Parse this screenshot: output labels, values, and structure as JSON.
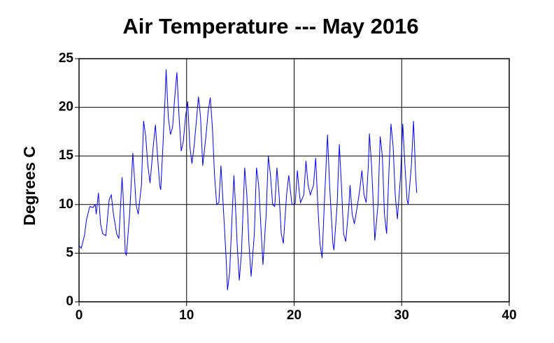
{
  "chart_data": {
    "type": "line",
    "title": "Air Temperature --- May 2016",
    "ylabel": "Degrees C",
    "color": "#0000ff",
    "grid": true,
    "xlim": [
      0,
      40
    ],
    "xticks": [
      0,
      10,
      20,
      30,
      40
    ],
    "ylim": [
      0,
      25
    ],
    "yticks": [
      0,
      5,
      10,
      15,
      20,
      25
    ],
    "x": [
      0,
      0.2,
      0.5,
      0.7,
      1.0,
      1.3,
      1.5,
      1.6,
      1.8,
      2.0,
      2.2,
      2.5,
      2.8,
      3.0,
      3.2,
      3.5,
      3.7,
      4.0,
      4.1,
      4.3,
      4.4,
      4.7,
      5.0,
      5.2,
      5.3,
      5.5,
      5.8,
      6.0,
      6.2,
      6.4,
      6.6,
      6.9,
      7.1,
      7.3,
      7.5,
      7.6,
      7.8,
      8.0,
      8.1,
      8.3,
      8.5,
      8.7,
      8.9,
      9.1,
      9.3,
      9.5,
      9.7,
      9.9,
      10.1,
      10.3,
      10.5,
      10.7,
      10.9,
      11.1,
      11.3,
      11.5,
      11.8,
      12.0,
      12.2,
      12.4,
      12.6,
      12.8,
      13.0,
      13.2,
      13.3,
      13.5,
      13.7,
      13.8,
      14.0,
      14.2,
      14.4,
      14.5,
      14.7,
      14.9,
      15.1,
      15.4,
      15.6,
      15.8,
      16.0,
      16.3,
      16.5,
      16.7,
      16.9,
      17.1,
      17.4,
      17.6,
      17.8,
      18.0,
      18.2,
      18.4,
      18.6,
      18.8,
      19.0,
      19.3,
      19.5,
      19.8,
      20.1,
      20.3,
      20.5,
      20.6,
      20.9,
      21.1,
      21.3,
      21.5,
      21.8,
      22.0,
      22.2,
      22.4,
      22.6,
      22.8,
      23.1,
      23.3,
      23.6,
      23.7,
      24.0,
      24.2,
      24.4,
      24.6,
      24.8,
      25.1,
      25.2,
      25.4,
      25.6,
      25.9,
      26.1,
      26.3,
      26.5,
      26.7,
      26.9,
      27.0,
      27.2,
      27.4,
      27.5,
      27.8,
      28.0,
      28.2,
      28.4,
      28.6,
      28.8,
      29.0,
      29.2,
      29.4,
      29.6,
      29.9,
      30.1,
      30.3,
      30.5,
      30.6,
      30.9,
      31.1,
      31.3,
      31.4
    ],
    "values": [
      5.8,
      5.5,
      6.8,
      8.5,
      9.8,
      9.7,
      10.0,
      9.0,
      11.2,
      8.0,
      7.0,
      6.8,
      10.5,
      11.0,
      9.0,
      7.0,
      6.5,
      12.8,
      11,
      5.0,
      4.8,
      9,
      15.3,
      12,
      10,
      9,
      12,
      18.6,
      17,
      14,
      12.2,
      16,
      18.2,
      15,
      12,
      11.5,
      16,
      21,
      23.9,
      19,
      17.2,
      18,
      21,
      23.6,
      19,
      15.5,
      16.5,
      19,
      20.6,
      16,
      14.2,
      16,
      18.5,
      21.1,
      19,
      14,
      17,
      19.5,
      21,
      18,
      13,
      10,
      10.2,
      14,
      12,
      8,
      4,
      1.2,
      3,
      8,
      13,
      11,
      6,
      2.2,
      5,
      13.8,
      11,
      6,
      2.6,
      7,
      13.8,
      12,
      8,
      3.8,
      9,
      15,
      13,
      10,
      9.8,
      13.8,
      11,
      7,
      6,
      11,
      13,
      10,
      10.1,
      13.5,
      11,
      10.2,
      11,
      14.5,
      12,
      11,
      12,
      14.8,
      10,
      6,
      4.5,
      10,
      17.2,
      12,
      6,
      5.3,
      10,
      16.2,
      12,
      7,
      6.2,
      10,
      12,
      9,
      8,
      10,
      11.5,
      13.5,
      11,
      10.2,
      14,
      17.3,
      14,
      9,
      6.3,
      10,
      17,
      15,
      9,
      7,
      13,
      18.3,
      16,
      11,
      8.5,
      13,
      18.3,
      14,
      10.5,
      10,
      14,
      18.6,
      13,
      11.2
    ]
  }
}
